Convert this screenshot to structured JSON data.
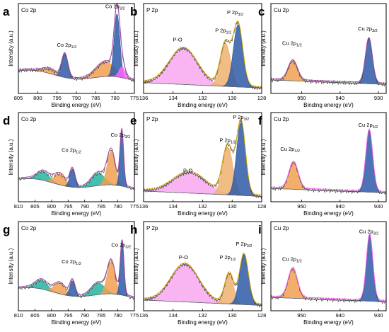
{
  "figure": {
    "ylabel": "Intensity (a.u.)",
    "xlabel": "Binding energy (eV)"
  },
  "chart_data": [
    {
      "letter": "a",
      "title": "Co 2p",
      "type": "area",
      "xlim": [
        805,
        775
      ],
      "xticks": [
        805,
        800,
        795,
        790,
        785,
        780,
        775
      ],
      "labels": [
        {
          "main": "Co 2p",
          "sub": "1/2",
          "x": 792.5,
          "y": 0.52
        },
        {
          "main": "Co 2p",
          "sub": "3/2",
          "x": 780.0,
          "y": 0.95
        }
      ],
      "series": [
        {
          "kind": "peak",
          "center": 797.0,
          "height": 0.05,
          "width": 1.6,
          "color": "#f0a050"
        },
        {
          "kind": "peak",
          "center": 793.0,
          "height": 0.26,
          "width": 0.8,
          "color": "#2e5aa8"
        },
        {
          "kind": "peak",
          "center": 782.5,
          "height": 0.16,
          "width": 2.4,
          "color": "#f0a050"
        },
        {
          "kind": "peak",
          "center": 779.5,
          "height": 0.7,
          "width": 0.75,
          "color": "#2e5aa8"
        },
        {
          "kind": "peak",
          "center": 778.2,
          "height": 0.12,
          "width": 0.8,
          "color": "#ff66ff"
        }
      ],
      "envelope": "#a64ca6"
    },
    {
      "letter": "b",
      "title": "P 2p",
      "type": "area",
      "xlim": [
        136,
        128
      ],
      "xticks": [
        136,
        134,
        132,
        130,
        128
      ],
      "labels": [
        {
          "main": "P-O",
          "x": 133.7,
          "y": 0.58
        },
        {
          "main": "P 2p",
          "sub": "1/2",
          "x": 130.6,
          "y": 0.68
        },
        {
          "main": "P 2p",
          "sub": "3/2",
          "x": 129.8,
          "y": 0.88
        }
      ],
      "series": [
        {
          "kind": "peak",
          "center": 133.3,
          "height": 0.4,
          "width": 0.95,
          "color": "#f7a8f0"
        },
        {
          "kind": "peak",
          "center": 130.45,
          "height": 0.48,
          "width": 0.35,
          "color": "#f0b070"
        },
        {
          "kind": "peak",
          "center": 129.6,
          "height": 0.69,
          "width": 0.32,
          "color": "#2e5aa8"
        }
      ],
      "envelope": "#d4a800"
    },
    {
      "letter": "c",
      "title": "Cu 2p",
      "type": "area",
      "xlim": [
        958,
        928
      ],
      "xticks": [
        950,
        940,
        930
      ],
      "labels": [
        {
          "main": "Cu 2p",
          "sub": "1/2",
          "x": 952.5,
          "y": 0.54
        },
        {
          "main": "Cu 2p",
          "sub": "3/2",
          "x": 932.8,
          "y": 0.7
        }
      ],
      "series": [
        {
          "kind": "peak",
          "center": 952.3,
          "height": 0.22,
          "width": 1.2,
          "color": "#f0a050"
        },
        {
          "kind": "peak",
          "center": 932.5,
          "height": 0.5,
          "width": 0.9,
          "color": "#2e5aa8"
        }
      ],
      "envelope": "#a64ca6"
    },
    {
      "letter": "d",
      "title": "Co 2p",
      "type": "area",
      "xlim": [
        810,
        775
      ],
      "xticks": [
        810,
        805,
        800,
        795,
        790,
        785,
        780,
        775
      ],
      "labels": [
        {
          "main": "Co 2p",
          "sub": "1/2",
          "x": 794.0,
          "y": 0.56
        },
        {
          "main": "Co 2p",
          "sub": "3/2",
          "x": 779.2,
          "y": 0.73
        }
      ],
      "series": [
        {
          "kind": "peak",
          "center": 802.5,
          "height": 0.1,
          "width": 1.8,
          "color": "#26b5a0"
        },
        {
          "kind": "peak",
          "center": 797.5,
          "height": 0.12,
          "width": 1.7,
          "color": "#f0a050"
        },
        {
          "kind": "peak",
          "center": 793.7,
          "height": 0.2,
          "width": 0.8,
          "color": "#2e5aa8"
        },
        {
          "kind": "peak",
          "center": 786.0,
          "height": 0.14,
          "width": 2.0,
          "color": "#26b5a0"
        },
        {
          "kind": "peak",
          "center": 782.0,
          "height": 0.38,
          "width": 1.2,
          "color": "#f0a050"
        },
        {
          "kind": "peak",
          "center": 778.8,
          "height": 0.62,
          "width": 0.55,
          "color": "#2e5aa8"
        }
      ],
      "envelope": "#a64ca6"
    },
    {
      "letter": "e",
      "title": "P 2p",
      "type": "area",
      "xlim": [
        136,
        128
      ],
      "xticks": [
        136,
        134,
        132,
        130,
        128
      ],
      "labels": [
        {
          "main": "P-O",
          "x": 133.0,
          "y": 0.33
        },
        {
          "main": "P 2p",
          "sub": "1/2",
          "x": 130.3,
          "y": 0.67
        },
        {
          "main": "P 2p",
          "sub": "3/2",
          "x": 129.4,
          "y": 0.93
        }
      ],
      "series": [
        {
          "kind": "peak",
          "center": 132.9,
          "height": 0.23,
          "width": 1.1,
          "color": "#f7a8f0"
        },
        {
          "kind": "peak",
          "center": 130.3,
          "height": 0.54,
          "width": 0.35,
          "color": "#f0b070"
        },
        {
          "kind": "peak",
          "center": 129.4,
          "height": 0.82,
          "width": 0.3,
          "color": "#2e5aa8"
        }
      ],
      "envelope": "#d4a800"
    },
    {
      "letter": "f",
      "title": "Cu 2p",
      "type": "area",
      "xlim": [
        958,
        928
      ],
      "xticks": [
        950,
        940,
        930
      ],
      "labels": [
        {
          "main": "Cu 2p",
          "sub": "1/2",
          "x": 953.0,
          "y": 0.57
        },
        {
          "main": "Cu 2p",
          "sub": "3/2",
          "x": 932.7,
          "y": 0.84
        }
      ],
      "series": [
        {
          "kind": "peak",
          "center": 952.1,
          "height": 0.3,
          "width": 1.2,
          "color": "#f0a050"
        },
        {
          "kind": "peak",
          "center": 932.4,
          "height": 0.69,
          "width": 0.9,
          "color": "#2e5aa8"
        }
      ],
      "envelope": "#ff66ff"
    },
    {
      "letter": "g",
      "title": "Co 2p",
      "type": "area",
      "xlim": [
        810,
        775
      ],
      "xticks": [
        810,
        805,
        800,
        795,
        790,
        785,
        780,
        775
      ],
      "labels": [
        {
          "main": "Co 2p",
          "sub": "1/2",
          "x": 794.0,
          "y": 0.53
        },
        {
          "main": "Co 2p",
          "sub": "3/2",
          "x": 779.0,
          "y": 0.72
        }
      ],
      "series": [
        {
          "kind": "peak",
          "center": 803.0,
          "height": 0.1,
          "width": 1.8,
          "color": "#26b5a0"
        },
        {
          "kind": "peak",
          "center": 797.5,
          "height": 0.12,
          "width": 1.7,
          "color": "#f0a050"
        },
        {
          "kind": "peak",
          "center": 793.7,
          "height": 0.17,
          "width": 0.8,
          "color": "#2e5aa8"
        },
        {
          "kind": "peak",
          "center": 786.0,
          "height": 0.13,
          "width": 2.0,
          "color": "#26b5a0"
        },
        {
          "kind": "peak",
          "center": 782.0,
          "height": 0.36,
          "width": 1.2,
          "color": "#f0a050"
        },
        {
          "kind": "peak",
          "center": 778.7,
          "height": 0.6,
          "width": 0.55,
          "color": "#2e5aa8"
        }
      ],
      "envelope": "#a64ca6"
    },
    {
      "letter": "h",
      "title": "P 2p",
      "type": "area",
      "xlim": [
        136,
        128
      ],
      "xticks": [
        136,
        134,
        132,
        130,
        128
      ],
      "labels": [
        {
          "main": "P-O",
          "x": 133.3,
          "y": 0.58
        },
        {
          "main": "P 2p",
          "sub": "1/2",
          "x": 130.3,
          "y": 0.58
        },
        {
          "main": "P 2p",
          "sub": "3/2",
          "x": 129.2,
          "y": 0.73
        }
      ],
      "series": [
        {
          "kind": "peak",
          "center": 133.2,
          "height": 0.42,
          "width": 0.95,
          "color": "#f7a8f0"
        },
        {
          "kind": "peak",
          "center": 130.2,
          "height": 0.34,
          "width": 0.3,
          "color": "#f0b070"
        },
        {
          "kind": "peak",
          "center": 129.2,
          "height": 0.56,
          "width": 0.3,
          "color": "#2e5aa8"
        }
      ],
      "envelope": "#d4a800"
    },
    {
      "letter": "i",
      "title": "Cu 2p",
      "type": "area",
      "xlim": [
        958,
        928
      ],
      "xticks": [
        950,
        940,
        930
      ],
      "labels": [
        {
          "main": "Cu 2p",
          "sub": "1/2",
          "x": 952.5,
          "y": 0.56
        },
        {
          "main": "Cu 2p",
          "sub": "3/2",
          "x": 932.5,
          "y": 0.87
        }
      ],
      "series": [
        {
          "kind": "peak",
          "center": 952.3,
          "height": 0.33,
          "width": 1.2,
          "color": "#f0a050"
        },
        {
          "kind": "peak",
          "center": 932.3,
          "height": 0.74,
          "width": 0.85,
          "color": "#2e5aa8"
        }
      ],
      "envelope": "#ff66ff"
    }
  ]
}
